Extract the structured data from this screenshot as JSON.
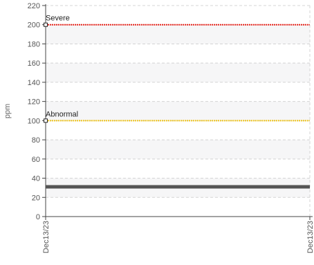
{
  "chart_data": {
    "type": "line",
    "ylabel": "ppm",
    "xlabel": "",
    "ylim": [
      0,
      220
    ],
    "yticks": [
      0,
      20,
      40,
      60,
      80,
      100,
      120,
      140,
      160,
      180,
      200,
      220
    ],
    "x_tick_labels": [
      "Dec13/23",
      "Dec13/23"
    ],
    "grid": true,
    "thresholds": [
      {
        "label": "Severe",
        "value": 200,
        "color": "#e8231b"
      },
      {
        "label": "Abnormal",
        "value": 100,
        "color": "#f0c419"
      }
    ],
    "series": [
      {
        "values": [
          31,
          31
        ],
        "color": "#555555"
      }
    ]
  }
}
